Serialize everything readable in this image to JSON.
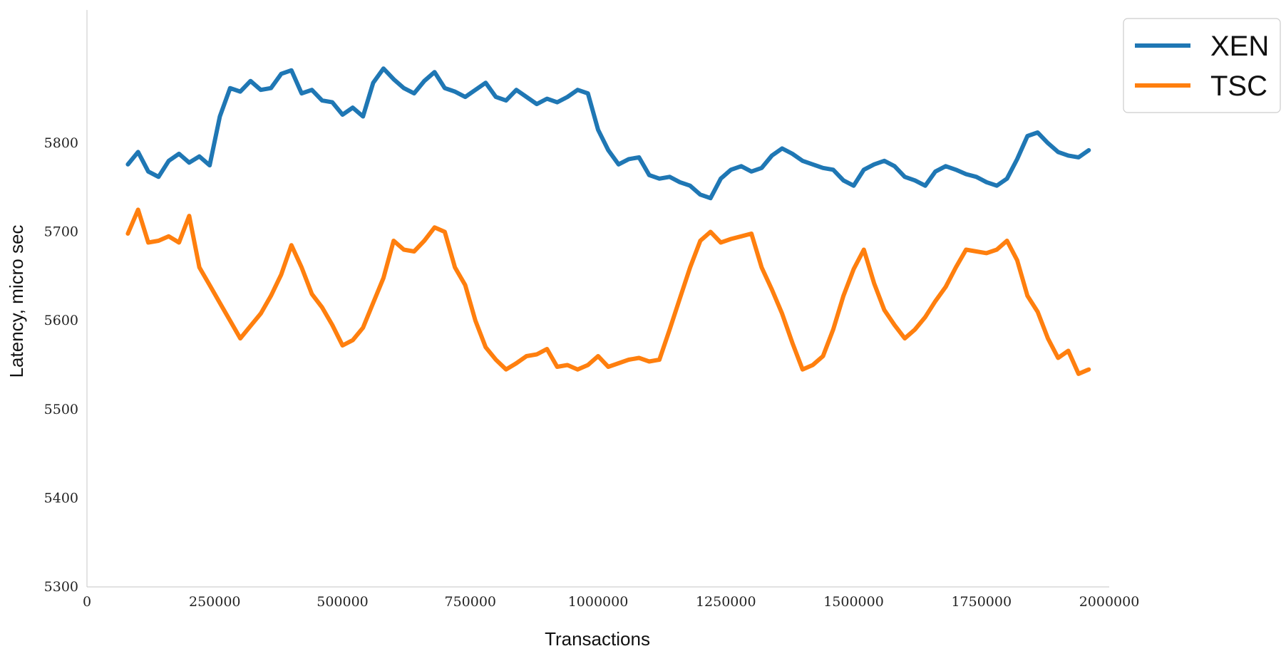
{
  "chart_data": {
    "type": "line",
    "title": "",
    "xlabel": "Transactions",
    "ylabel": "Latency, micro sec",
    "xlim": [
      0,
      2000000
    ],
    "ylim": [
      5300,
      5950
    ],
    "xticks": [
      0,
      250000,
      500000,
      750000,
      1000000,
      1250000,
      1500000,
      1750000,
      2000000
    ],
    "xtick_labels": [
      "0",
      "250000",
      "500000",
      "750000",
      "1000000",
      "1250000",
      "1500000",
      "1750000",
      "2000000"
    ],
    "yticks": [
      5300,
      5400,
      5500,
      5600,
      5700,
      5800
    ],
    "ytick_labels": [
      "5300",
      "5400",
      "5500",
      "5600",
      "5700",
      "5800"
    ],
    "grid": false,
    "legend_position": "top-right, outside plot",
    "series": [
      {
        "name": "XEN",
        "color": "#1f77b4",
        "x": [
          80000,
          100000,
          120000,
          140000,
          160000,
          180000,
          200000,
          220000,
          240000,
          260000,
          280000,
          300000,
          320000,
          340000,
          360000,
          380000,
          400000,
          420000,
          440000,
          460000,
          480000,
          500000,
          520000,
          540000,
          560000,
          580000,
          600000,
          620000,
          640000,
          660000,
          680000,
          700000,
          720000,
          740000,
          760000,
          780000,
          800000,
          820000,
          840000,
          860000,
          880000,
          900000,
          920000,
          940000,
          960000,
          980000,
          1000000,
          1020000,
          1040000,
          1060000,
          1080000,
          1100000,
          1120000,
          1140000,
          1160000,
          1180000,
          1200000,
          1220000,
          1240000,
          1260000,
          1280000,
          1300000,
          1320000,
          1340000,
          1360000,
          1380000,
          1400000,
          1420000,
          1440000,
          1460000,
          1480000,
          1500000,
          1520000,
          1540000,
          1560000,
          1580000,
          1600000,
          1620000,
          1640000,
          1660000,
          1680000,
          1700000,
          1720000,
          1740000,
          1760000,
          1780000,
          1800000,
          1820000,
          1840000,
          1860000,
          1880000,
          1900000,
          1920000,
          1940000,
          1960000
        ],
        "y": [
          5776,
          5790,
          5768,
          5762,
          5780,
          5788,
          5778,
          5785,
          5775,
          5830,
          5862,
          5858,
          5870,
          5860,
          5862,
          5878,
          5882,
          5856,
          5860,
          5848,
          5846,
          5832,
          5840,
          5830,
          5868,
          5884,
          5872,
          5862,
          5856,
          5870,
          5880,
          5862,
          5858,
          5852,
          5860,
          5868,
          5852,
          5848,
          5860,
          5852,
          5844,
          5850,
          5846,
          5852,
          5860,
          5856,
          5815,
          5792,
          5776,
          5782,
          5784,
          5764,
          5760,
          5762,
          5756,
          5752,
          5742,
          5738,
          5760,
          5770,
          5774,
          5768,
          5772,
          5786,
          5794,
          5788,
          5780,
          5776,
          5772,
          5770,
          5758,
          5752,
          5770,
          5776,
          5780,
          5774,
          5762,
          5758,
          5752,
          5768,
          5774,
          5770,
          5765,
          5762,
          5756,
          5752,
          5760,
          5782,
          5808,
          5812,
          5800,
          5790,
          5786,
          5784,
          5792
        ]
      },
      {
        "name": "TSC",
        "color": "#ff7f0e",
        "x": [
          80000,
          100000,
          120000,
          140000,
          160000,
          180000,
          200000,
          220000,
          240000,
          260000,
          280000,
          300000,
          320000,
          340000,
          360000,
          380000,
          400000,
          420000,
          440000,
          460000,
          480000,
          500000,
          520000,
          540000,
          560000,
          580000,
          600000,
          620000,
          640000,
          660000,
          680000,
          700000,
          720000,
          740000,
          760000,
          780000,
          800000,
          820000,
          840000,
          860000,
          880000,
          900000,
          920000,
          940000,
          960000,
          980000,
          1000000,
          1020000,
          1040000,
          1060000,
          1080000,
          1100000,
          1120000,
          1140000,
          1160000,
          1180000,
          1200000,
          1220000,
          1240000,
          1260000,
          1280000,
          1300000,
          1320000,
          1340000,
          1360000,
          1380000,
          1400000,
          1420000,
          1440000,
          1460000,
          1480000,
          1500000,
          1520000,
          1540000,
          1560000,
          1580000,
          1600000,
          1620000,
          1640000,
          1660000,
          1680000,
          1700000,
          1720000,
          1740000,
          1760000,
          1780000,
          1800000,
          1820000,
          1840000,
          1860000,
          1880000,
          1900000,
          1920000,
          1940000,
          1960000
        ],
        "y": [
          5698,
          5725,
          5688,
          5690,
          5695,
          5688,
          5718,
          5660,
          5640,
          5620,
          5600,
          5580,
          5594,
          5608,
          5628,
          5652,
          5685,
          5660,
          5630,
          5615,
          5595,
          5572,
          5578,
          5592,
          5620,
          5648,
          5690,
          5680,
          5678,
          5690,
          5705,
          5700,
          5660,
          5640,
          5600,
          5570,
          5556,
          5545,
          5552,
          5560,
          5562,
          5568,
          5548,
          5550,
          5545,
          5550,
          5560,
          5548,
          5552,
          5556,
          5558,
          5554,
          5556,
          5590,
          5625,
          5660,
          5690,
          5700,
          5688,
          5692,
          5695,
          5698,
          5660,
          5635,
          5608,
          5575,
          5545,
          5550,
          5560,
          5590,
          5628,
          5658,
          5680,
          5642,
          5612,
          5595,
          5580,
          5590,
          5604,
          5622,
          5638,
          5660,
          5680,
          5678,
          5676,
          5680,
          5690,
          5668,
          5628,
          5610,
          5580,
          5558,
          5566,
          5540,
          5545
        ]
      }
    ]
  }
}
